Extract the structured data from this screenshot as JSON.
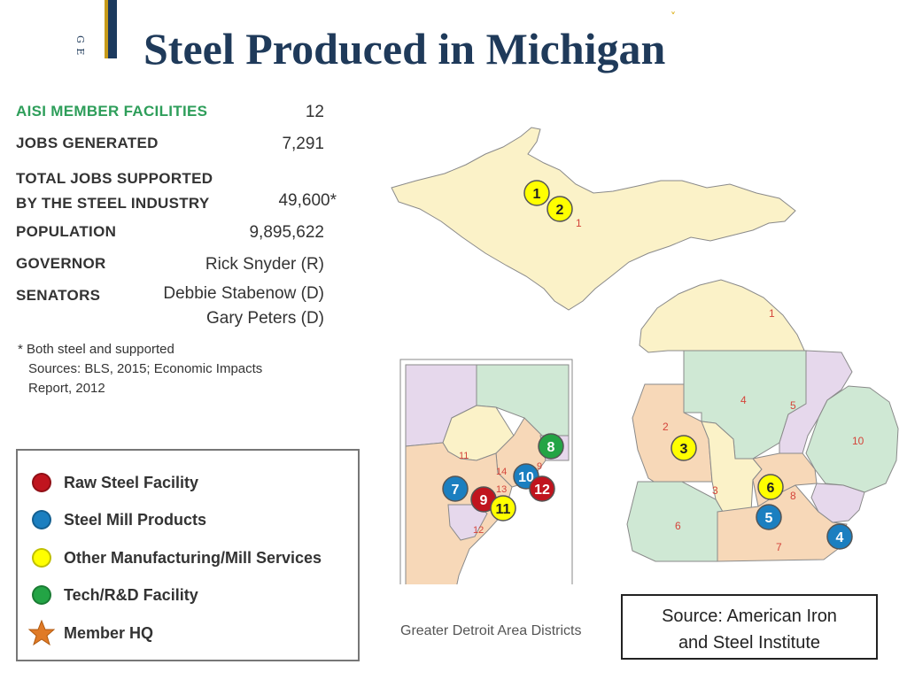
{
  "side_label": "G E",
  "title": "Steel Produced in Michigan",
  "stats": [
    {
      "label": "AISI MEMBER FACILITIES",
      "value": "12"
    },
    {
      "label": "JOBS GENERATED",
      "value": "7,291"
    },
    {
      "label_line1": "TOTAL JOBS SUPPORTED",
      "label_line2": "BY THE STEEL INDUSTRY",
      "value": "49,600*"
    },
    {
      "label": "POPULATION",
      "value": "9,895,622"
    },
    {
      "label": "GOVERNOR",
      "value": "Rick Snyder (R)"
    },
    {
      "label": "SENATORS",
      "value_line1": "Debbie Stabenow (D)",
      "value_line2": "Gary Peters (D)"
    }
  ],
  "footnote": [
    "* Both steel and supported",
    "Sources: BLS, 2015; Economic Impacts",
    "Report, 2012"
  ],
  "legend": [
    {
      "label": "Raw Steel Facility",
      "color": "#c0141e"
    },
    {
      "label": "Steel Mill Products",
      "color": "#1b7fc0"
    },
    {
      "label": "Other Manufacturing/Mill Services",
      "color": "#ffff00"
    },
    {
      "label": "Tech/R&D Facility",
      "color": "#23a445"
    },
    {
      "label": "Member HQ",
      "color": "#e07a26"
    }
  ],
  "map": {
    "district_labels": [
      "1",
      "1",
      "2",
      "3",
      "4",
      "5",
      "6",
      "7",
      "8",
      "10"
    ],
    "inset_district_labels": [
      "11",
      "12",
      "13",
      "14",
      "9"
    ],
    "facility_markers": [
      {
        "number": "1",
        "type": "Other Manufacturing/Mill Services"
      },
      {
        "number": "2",
        "type": "Other Manufacturing/Mill Services"
      },
      {
        "number": "3",
        "type": "Other Manufacturing/Mill Services"
      },
      {
        "number": "4",
        "type": "Steel Mill Products"
      },
      {
        "number": "5",
        "type": "Steel Mill Products"
      },
      {
        "number": "6",
        "type": "Other Manufacturing/Mill Services"
      },
      {
        "number": "7",
        "type": "Steel Mill Products"
      },
      {
        "number": "8",
        "type": "Tech/R&D Facility"
      },
      {
        "number": "9",
        "type": "Raw Steel Facility"
      },
      {
        "number": "10",
        "type": "Steel Mill Products"
      },
      {
        "number": "11",
        "type": "Other Manufacturing/Mill Services"
      },
      {
        "number": "12",
        "type": "Raw Steel Facility"
      }
    ],
    "inset_caption": "Greater Detroit Area Districts",
    "colors": {
      "district_1": "#fbf2c8",
      "district_green": "#cfe8d4",
      "district_peach": "#f7d8b8",
      "district_lavender": "#e6d8ec",
      "border": "#8a8a8a"
    }
  },
  "source": [
    "Source:  American Iron",
    "and Steel Institute"
  ]
}
